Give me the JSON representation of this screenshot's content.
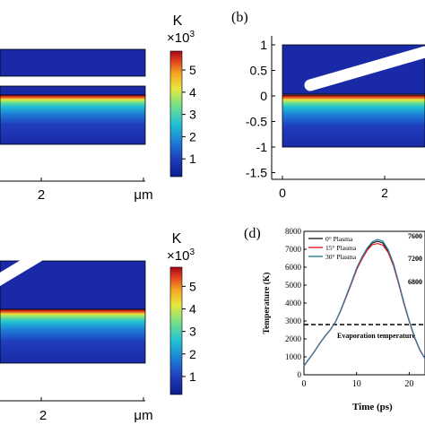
{
  "colors": {
    "field_bg": "#1a2aa6",
    "frame": "#000000",
    "tip": "#ffffff",
    "colormap": [
      "#0b1e8a",
      "#1f3dbd",
      "#1d7fd6",
      "#22c1d4",
      "#6fe08c",
      "#e8e840",
      "#f5a623",
      "#e2421c",
      "#a3081a"
    ],
    "series": [
      "#222222",
      "#e02020",
      "#2a7da8"
    ],
    "threshold": "#000000"
  },
  "panels": {
    "b_label": "(b)",
    "d_label": "(d)"
  },
  "colorbar_top": {
    "unit": "K",
    "scale_base": "×10",
    "scale_exp": "3",
    "ticks": [
      "5",
      "4",
      "3",
      "2",
      "1"
    ]
  },
  "colorbar_bottom": {
    "unit": "K",
    "scale_base": "×10",
    "scale_exp": "3",
    "ticks": [
      "5",
      "4",
      "3",
      "2",
      "1"
    ]
  },
  "panel_a": {
    "xtick": "2",
    "unit_label": "μm"
  },
  "panel_b": {
    "yticks": [
      "1",
      "0.5",
      "0",
      "-0.5",
      "-1",
      "-1.5"
    ],
    "xticks": [
      "0",
      "2"
    ]
  },
  "panel_c": {
    "xtick": "2",
    "unit_label": "μm"
  },
  "chart_data": {
    "type": "line",
    "title": "",
    "xlabel": "Time (ps)",
    "ylabel": "Temperature (K)",
    "xlim": [
      0,
      23
    ],
    "ylim": [
      0,
      8000
    ],
    "xticks": [
      "0",
      "10",
      "20"
    ],
    "yticks": [
      "8000",
      "7000",
      "6000",
      "5000",
      "4000",
      "3000",
      "2000",
      "1000",
      "0"
    ],
    "inset_ticks": [
      "7600",
      "7200",
      "6800"
    ],
    "legend_position": "top-left",
    "series": [
      {
        "name": "0° Plasma",
        "x": [
          0,
          1,
          2,
          3,
          4,
          5,
          6,
          7,
          8,
          9,
          10,
          11,
          12,
          13,
          14,
          15,
          16,
          17,
          18,
          19,
          20,
          21,
          22,
          23
        ],
        "values": [
          500,
          900,
          1300,
          1750,
          2150,
          2500,
          2950,
          3600,
          4350,
          5100,
          5900,
          6500,
          7000,
          7350,
          7450,
          7350,
          6900,
          6150,
          5100,
          4000,
          3000,
          2100,
          1400,
          900
        ]
      },
      {
        "name": "15° Plasma",
        "x": [
          0,
          1,
          2,
          3,
          4,
          5,
          6,
          7,
          8,
          9,
          10,
          11,
          12,
          13,
          14,
          15,
          16,
          17,
          18,
          19,
          20,
          21,
          22,
          23
        ],
        "values": [
          500,
          900,
          1300,
          1750,
          2150,
          2500,
          2950,
          3580,
          4320,
          5060,
          5850,
          6440,
          6930,
          7260,
          7320,
          7230,
          6820,
          6080,
          5060,
          3960,
          2980,
          2080,
          1390,
          890
        ]
      },
      {
        "name": "30° Plasma",
        "x": [
          0,
          1,
          2,
          3,
          4,
          5,
          6,
          7,
          8,
          9,
          10,
          11,
          12,
          13,
          14,
          15,
          16,
          17,
          18,
          19,
          20,
          21,
          22,
          23
        ],
        "values": [
          500,
          900,
          1300,
          1750,
          2150,
          2500,
          2950,
          3620,
          4380,
          5140,
          5950,
          6560,
          7060,
          7420,
          7550,
          7450,
          6980,
          6220,
          5150,
          4040,
          3020,
          2120,
          1420,
          910
        ]
      }
    ],
    "threshold": {
      "value": 2800,
      "label": "Evaporation temperature"
    }
  }
}
